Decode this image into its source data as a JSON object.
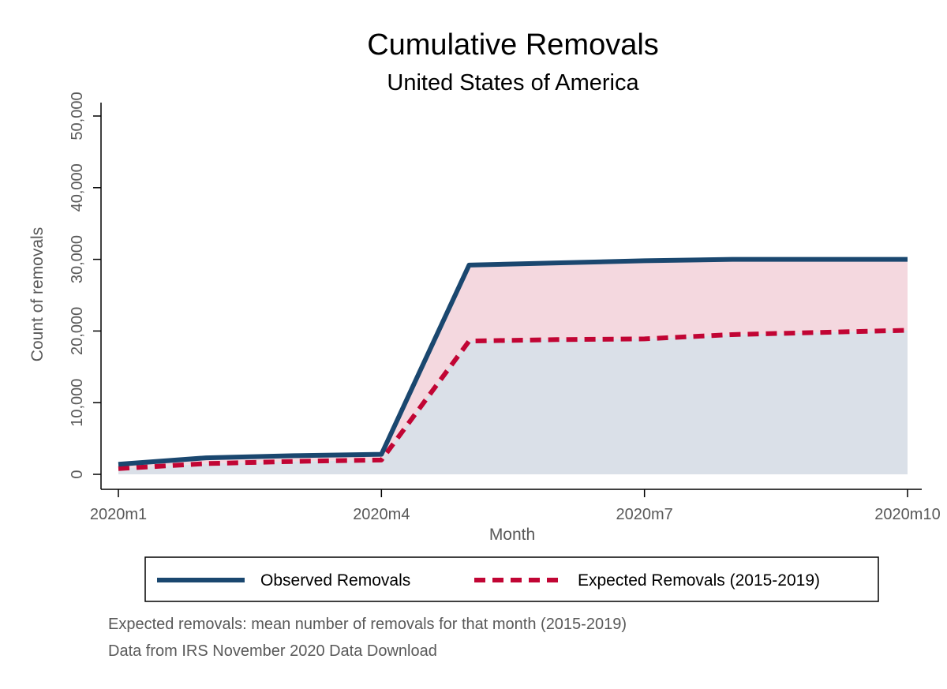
{
  "chart_data": {
    "type": "area",
    "title": "Cumulative Removals",
    "subtitle": "United States of America",
    "xlabel": "Month",
    "ylabel": "Count of removals",
    "categories": [
      "2020m1",
      "2020m2",
      "2020m3",
      "2020m4",
      "2020m5",
      "2020m6",
      "2020m7",
      "2020m8",
      "2020m9",
      "2020m10"
    ],
    "x_ticks": [
      "2020m1",
      "2020m4",
      "2020m7",
      "2020m10"
    ],
    "y_ticks": [
      "0",
      "10,000",
      "20,000",
      "30,000",
      "40,000",
      "50,000"
    ],
    "ylim": [
      0,
      50000
    ],
    "grid": false,
    "legend_position": "bottom",
    "series": [
      {
        "name": "Observed Removals",
        "color": "#1a476f",
        "fill": "#dae0e8",
        "line_style": "solid",
        "values": [
          1400,
          2300,
          2600,
          2800,
          29200,
          29500,
          29800,
          30000,
          30000,
          30000
        ]
      },
      {
        "name": "Expected Removals (2015-2019)",
        "color": "#c10534",
        "fill": "#f4d8df",
        "line_style": "dashed",
        "values": [
          800,
          1500,
          1800,
          2000,
          18600,
          18800,
          18900,
          19500,
          19800,
          20100
        ]
      }
    ],
    "notes": [
      "Expected removals: mean number of removals for that month (2015-2019)",
      "Data from IRS November 2020 Data Download"
    ]
  }
}
